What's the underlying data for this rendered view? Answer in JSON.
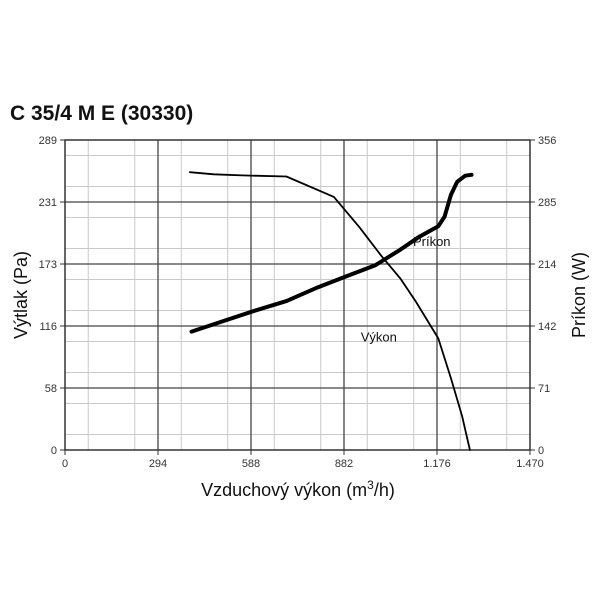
{
  "chart_data": {
    "type": "line",
    "title": "C 35/4 M E (30330)",
    "xlabel": "Vzduchový výkon (m",
    "xlabel_sup": "3",
    "xlabel_end": "/h)",
    "ylabel_left": "Výtlak (Pa)",
    "ylabel_right": "Príkon (W)",
    "x_ticks": [
      "0",
      "294",
      "588",
      "882",
      "1.176",
      "1.470"
    ],
    "y_left_ticks": [
      "0",
      "58",
      "116",
      "173",
      "231",
      "289"
    ],
    "y_right_ticks": [
      "0",
      "71",
      "142",
      "214",
      "285",
      "356"
    ],
    "xlim": [
      0,
      1470
    ],
    "ylim_left": [
      0,
      289
    ],
    "ylim_right": [
      0,
      356
    ],
    "grid": true,
    "series": [
      {
        "name": "Výkon",
        "axis": "left",
        "x": [
          395,
          470,
          560,
          700,
          850,
          930,
          1000,
          1060,
          1110,
          1180,
          1220,
          1255,
          1280
        ],
        "y": [
          259,
          257,
          256,
          255,
          236,
          208,
          181,
          160,
          138,
          104,
          67,
          32,
          0
        ]
      },
      {
        "name": "Príkon",
        "axis": "right",
        "x": [
          400,
          500,
          600,
          700,
          800,
          900,
          980,
          1060,
          1120,
          1180,
          1200,
          1220,
          1240,
          1265,
          1285
        ],
        "y": [
          136,
          148,
          160,
          171,
          187,
          201,
          212,
          230,
          245,
          257,
          268,
          293,
          308,
          315,
          316
        ]
      }
    ],
    "annotations": [
      {
        "text": "Príkon",
        "x": 1100,
        "y": 190
      },
      {
        "text": "Výkon",
        "x": 935,
        "y": 101
      }
    ]
  }
}
